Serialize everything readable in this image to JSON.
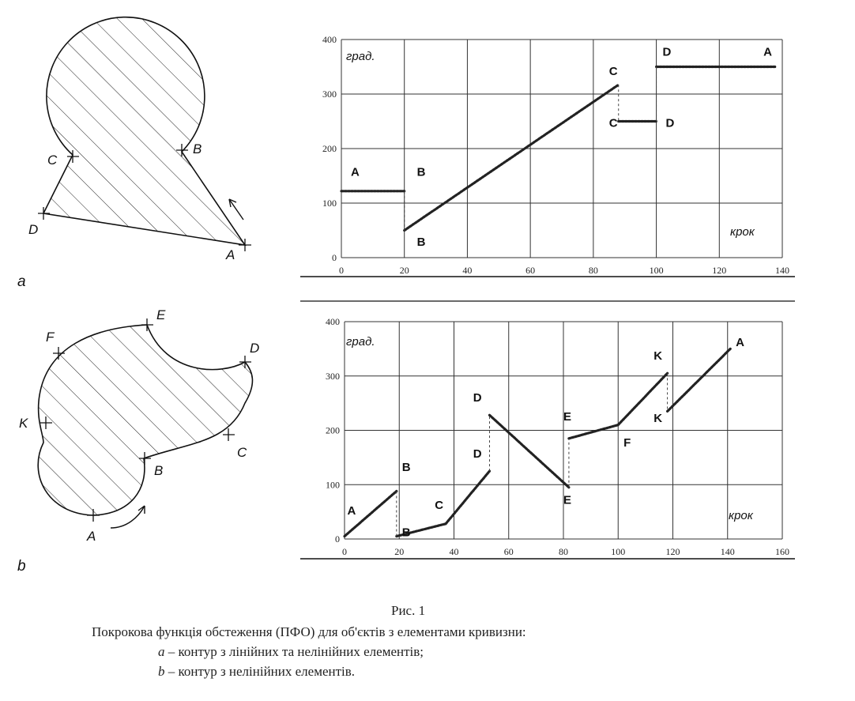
{
  "figure": {
    "caption_title": "Рис. 1",
    "caption_main": "Покрокова функція обстеження (ПФО) для об'єктів з елементами кривизни:",
    "caption_a_letter": "a",
    "caption_a_text": " – контур з лінійних та нелінійних елементів;",
    "caption_b_letter": "b",
    "caption_b_text": " – контур з нелінійних елементів."
  },
  "panel_a": {
    "sublabel": "a",
    "shape_labels": [
      "A",
      "B",
      "C",
      "D"
    ]
  },
  "panel_b": {
    "sublabel": "b",
    "shape_labels": [
      "A",
      "B",
      "C",
      "D",
      "E",
      "F",
      "K"
    ]
  },
  "chart_data": [
    {
      "type": "scatter",
      "ylabel": "град.",
      "xlabel": "крок",
      "xlim": [
        0,
        140
      ],
      "ylim": [
        0,
        400
      ],
      "x_ticks": [
        0,
        20,
        40,
        60,
        80,
        100,
        120,
        140
      ],
      "y_ticks": [
        0,
        100,
        200,
        300,
        400
      ],
      "grid": true,
      "segments": [
        {
          "from_label": "A",
          "to_label": "B",
          "x": [
            0,
            20
          ],
          "y": [
            122,
            122
          ]
        },
        {
          "from_label": "B",
          "to_label": "C",
          "x": [
            20,
            88
          ],
          "y": [
            50,
            317
          ]
        },
        {
          "from_label": "C",
          "to_label": "D",
          "x": [
            88,
            100
          ],
          "y": [
            250,
            250
          ]
        },
        {
          "from_label": "D",
          "to_label": "A",
          "x": [
            100,
            138
          ],
          "y": [
            350,
            350
          ]
        }
      ],
      "annotations": [
        {
          "text": "A",
          "x": 3,
          "y": 150
        },
        {
          "text": "B",
          "x": 24,
          "y": 150
        },
        {
          "text": "B",
          "x": 24,
          "y": 22
        },
        {
          "text": "C",
          "x": 85,
          "y": 335
        },
        {
          "text": "C",
          "x": 85,
          "y": 240
        },
        {
          "text": "D",
          "x": 103,
          "y": 240
        },
        {
          "text": "D",
          "x": 102,
          "y": 370
        },
        {
          "text": "A",
          "x": 134,
          "y": 370
        }
      ]
    },
    {
      "type": "scatter",
      "ylabel": "град.",
      "xlabel": "крок",
      "xlim": [
        0,
        160
      ],
      "ylim": [
        0,
        400
      ],
      "x_ticks": [
        0,
        20,
        40,
        60,
        80,
        100,
        120,
        140,
        160
      ],
      "y_ticks": [
        0,
        100,
        200,
        300,
        400
      ],
      "grid": true,
      "segments": [
        {
          "from_label": "A",
          "to_label": "B",
          "x": [
            0,
            19
          ],
          "y": [
            5,
            88
          ]
        },
        {
          "from_label": "B",
          "to_label": "C",
          "x": [
            19,
            37
          ],
          "y": [
            5,
            28
          ]
        },
        {
          "from_label": "C",
          "to_label": "D",
          "x": [
            37,
            53
          ],
          "y": [
            28,
            125
          ]
        },
        {
          "from_label": "D",
          "to_label": "E",
          "x": [
            53,
            82
          ],
          "y": [
            228,
            95
          ]
        },
        {
          "from_label": "E",
          "to_label": "F",
          "x": [
            82,
            100
          ],
          "y": [
            185,
            210
          ]
        },
        {
          "from_label": "F",
          "to_label": "K",
          "x": [
            100,
            118
          ],
          "y": [
            210,
            305
          ]
        },
        {
          "from_label": "K",
          "to_label": "A",
          "x": [
            118,
            141
          ],
          "y": [
            235,
            350
          ]
        }
      ],
      "annotations": [
        {
          "text": "A",
          "x": 1,
          "y": 45
        },
        {
          "text": "B",
          "x": 21,
          "y": 125
        },
        {
          "text": "B",
          "x": 21,
          "y": 5
        },
        {
          "text": "C",
          "x": 33,
          "y": 55
        },
        {
          "text": "D",
          "x": 47,
          "y": 150
        },
        {
          "text": "D",
          "x": 47,
          "y": 253
        },
        {
          "text": "E",
          "x": 80,
          "y": 65
        },
        {
          "text": "E",
          "x": 80,
          "y": 218
        },
        {
          "text": "F",
          "x": 102,
          "y": 170
        },
        {
          "text": "K",
          "x": 113,
          "y": 330
        },
        {
          "text": "K",
          "x": 113,
          "y": 215
        },
        {
          "text": "A",
          "x": 143,
          "y": 355
        }
      ]
    }
  ]
}
